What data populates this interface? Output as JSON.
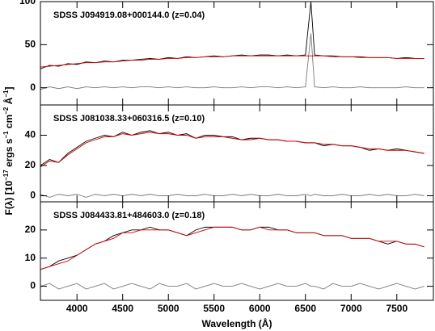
{
  "chart_data": [
    {
      "type": "line",
      "title": "SDSS J094919.08+000144.0 (z=0.04)",
      "x": [
        3600,
        3700,
        3800,
        3900,
        4000,
        4100,
        4200,
        4300,
        4400,
        4500,
        4600,
        4700,
        4800,
        4900,
        5000,
        5100,
        5200,
        5300,
        5400,
        5500,
        5600,
        5700,
        5800,
        5900,
        6000,
        6100,
        6200,
        6300,
        6400,
        6500,
        6560,
        6600,
        6700,
        6800,
        6900,
        7000,
        7100,
        7200,
        7300,
        7400,
        7500,
        7600,
        7700,
        7800
      ],
      "series": [
        {
          "color": "#7a7a7a",
          "values": [
            -2,
            1,
            -1,
            1,
            -1,
            1,
            0,
            1,
            0,
            1,
            0,
            1,
            1,
            0,
            1,
            0,
            1,
            0,
            0,
            1,
            0,
            0,
            1,
            0,
            1,
            1,
            0,
            1,
            0,
            1,
            63,
            1,
            0,
            1,
            0,
            0,
            1,
            0,
            0,
            0,
            0,
            1,
            0,
            0
          ]
        },
        {
          "color": "#000000",
          "values": [
            22,
            26,
            25,
            28,
            27,
            30,
            29,
            31,
            30,
            32,
            32,
            33,
            34,
            33,
            35,
            34,
            36,
            35,
            36,
            37,
            36,
            37,
            38,
            37,
            38,
            38,
            37,
            38,
            37,
            38,
            100,
            38,
            37,
            37,
            36,
            36,
            36,
            35,
            35,
            35,
            34,
            35,
            34,
            34
          ]
        },
        {
          "color": "#d40000",
          "values": [
            24,
            25,
            26,
            27,
            28,
            29,
            29,
            30,
            30,
            31,
            32,
            32,
            33,
            33,
            34,
            34,
            35,
            35,
            36,
            36,
            36,
            37,
            37,
            37,
            37,
            37,
            37,
            37,
            37,
            37,
            37,
            37,
            37,
            36,
            36,
            36,
            35,
            35,
            35,
            35,
            34,
            34,
            34,
            34
          ]
        }
      ],
      "xlim": [
        3600,
        7900
      ],
      "xticks": [
        4000,
        4500,
        5000,
        5500,
        6000,
        6500,
        7000,
        7500
      ],
      "ylim": [
        -20,
        100
      ],
      "yticks": [
        0,
        50,
        100
      ]
    },
    {
      "type": "line",
      "title": "SDSS J081038.33+060316.5 (z=0.10)",
      "ylabel": [
        "F(λ) [10",
        "−17",
        " ergs s",
        "−1",
        " cm",
        "−2",
        " Å",
        "−1",
        "]"
      ],
      "x": [
        3600,
        3700,
        3800,
        3900,
        4000,
        4100,
        4200,
        4300,
        4400,
        4500,
        4600,
        4700,
        4800,
        4900,
        5000,
        5100,
        5200,
        5300,
        5400,
        5500,
        5600,
        5700,
        5800,
        5900,
        6000,
        6100,
        6200,
        6300,
        6400,
        6500,
        6560,
        6600,
        6700,
        6800,
        6900,
        7000,
        7100,
        7200,
        7300,
        7400,
        7500,
        7600,
        7700,
        7800
      ],
      "series": [
        {
          "color": "#7a7a7a",
          "values": [
            1,
            -1,
            1,
            0,
            1,
            -1,
            1,
            0,
            1,
            0,
            1,
            0,
            1,
            0,
            0,
            1,
            0,
            0,
            1,
            0,
            0,
            1,
            0,
            1,
            0,
            0,
            1,
            0,
            0,
            1,
            0,
            1,
            0,
            0,
            1,
            0,
            0,
            1,
            0,
            1,
            0,
            0,
            1,
            0
          ]
        },
        {
          "color": "#000000",
          "values": [
            20,
            24,
            22,
            28,
            32,
            36,
            38,
            40,
            39,
            42,
            40,
            42,
            43,
            41,
            42,
            40,
            41,
            38,
            40,
            40,
            39,
            39,
            37,
            38,
            38,
            37,
            37,
            36,
            36,
            35,
            35,
            35,
            33,
            34,
            33,
            33,
            32,
            30,
            31,
            30,
            31,
            30,
            29,
            28
          ]
        },
        {
          "color": "#d40000",
          "values": [
            19,
            23,
            22,
            27,
            31,
            35,
            37,
            39,
            39,
            41,
            40,
            41,
            42,
            41,
            41,
            40,
            40,
            38,
            39,
            39,
            39,
            38,
            37,
            37,
            38,
            37,
            37,
            36,
            36,
            35,
            35,
            35,
            34,
            34,
            33,
            33,
            32,
            31,
            31,
            30,
            30,
            30,
            29,
            28
          ]
        }
      ],
      "xlim": [
        3600,
        7900
      ],
      "xticks": [
        4000,
        4500,
        5000,
        5500,
        6000,
        6500,
        7000,
        7500
      ],
      "ylim": [
        -4,
        60
      ],
      "yticks": [
        0,
        20,
        40
      ]
    },
    {
      "type": "line",
      "title": "SDSS J084433.81+484603.0 (z=0.18)",
      "xlabel": "Wavelength (Å)",
      "x": [
        3600,
        3700,
        3800,
        3900,
        4000,
        4100,
        4200,
        4300,
        4400,
        4500,
        4600,
        4700,
        4800,
        4900,
        5000,
        5100,
        5200,
        5300,
        5400,
        5500,
        5600,
        5700,
        5800,
        5900,
        6000,
        6100,
        6200,
        6300,
        6400,
        6500,
        6560,
        6600,
        6700,
        6800,
        6900,
        7000,
        7100,
        7200,
        7300,
        7400,
        7500,
        7600,
        7700,
        7800
      ],
      "series": [
        {
          "color": "#7a7a7a",
          "values": [
            0,
            1,
            -1,
            0,
            1,
            -1,
            0,
            1,
            -1,
            0,
            1,
            0,
            -1,
            1,
            0,
            0,
            1,
            -1,
            0,
            1,
            0,
            0,
            1,
            0,
            -1,
            0,
            1,
            0,
            0,
            1,
            0,
            0,
            -1,
            1,
            0,
            0,
            1,
            0,
            -1,
            0,
            1,
            0,
            -1,
            0
          ]
        },
        {
          "color": "#000000",
          "values": [
            6,
            7,
            9,
            10,
            11,
            13,
            15,
            16,
            18,
            19,
            20,
            20,
            21,
            20,
            20,
            19,
            18,
            20,
            21,
            21,
            21,
            21,
            20,
            20,
            21,
            21,
            20,
            20,
            19,
            19,
            19,
            19,
            18,
            18,
            18,
            17,
            17,
            17,
            16,
            15,
            16,
            15,
            15,
            14
          ]
        },
        {
          "color": "#d40000",
          "values": [
            6,
            7,
            8,
            9,
            11,
            13,
            15,
            16,
            17,
            19,
            19,
            20,
            20,
            20,
            20,
            19,
            18,
            19,
            20,
            21,
            21,
            21,
            20,
            20,
            21,
            20,
            20,
            20,
            19,
            19,
            19,
            19,
            18,
            18,
            18,
            17,
            17,
            17,
            16,
            16,
            16,
            15,
            15,
            14
          ]
        }
      ],
      "xlim": [
        3600,
        7900
      ],
      "xticks": [
        4000,
        4500,
        5000,
        5500,
        6000,
        6500,
        7000,
        7500
      ],
      "ylim": [
        -5,
        30
      ],
      "yticks": [
        0,
        10,
        20
      ]
    }
  ]
}
